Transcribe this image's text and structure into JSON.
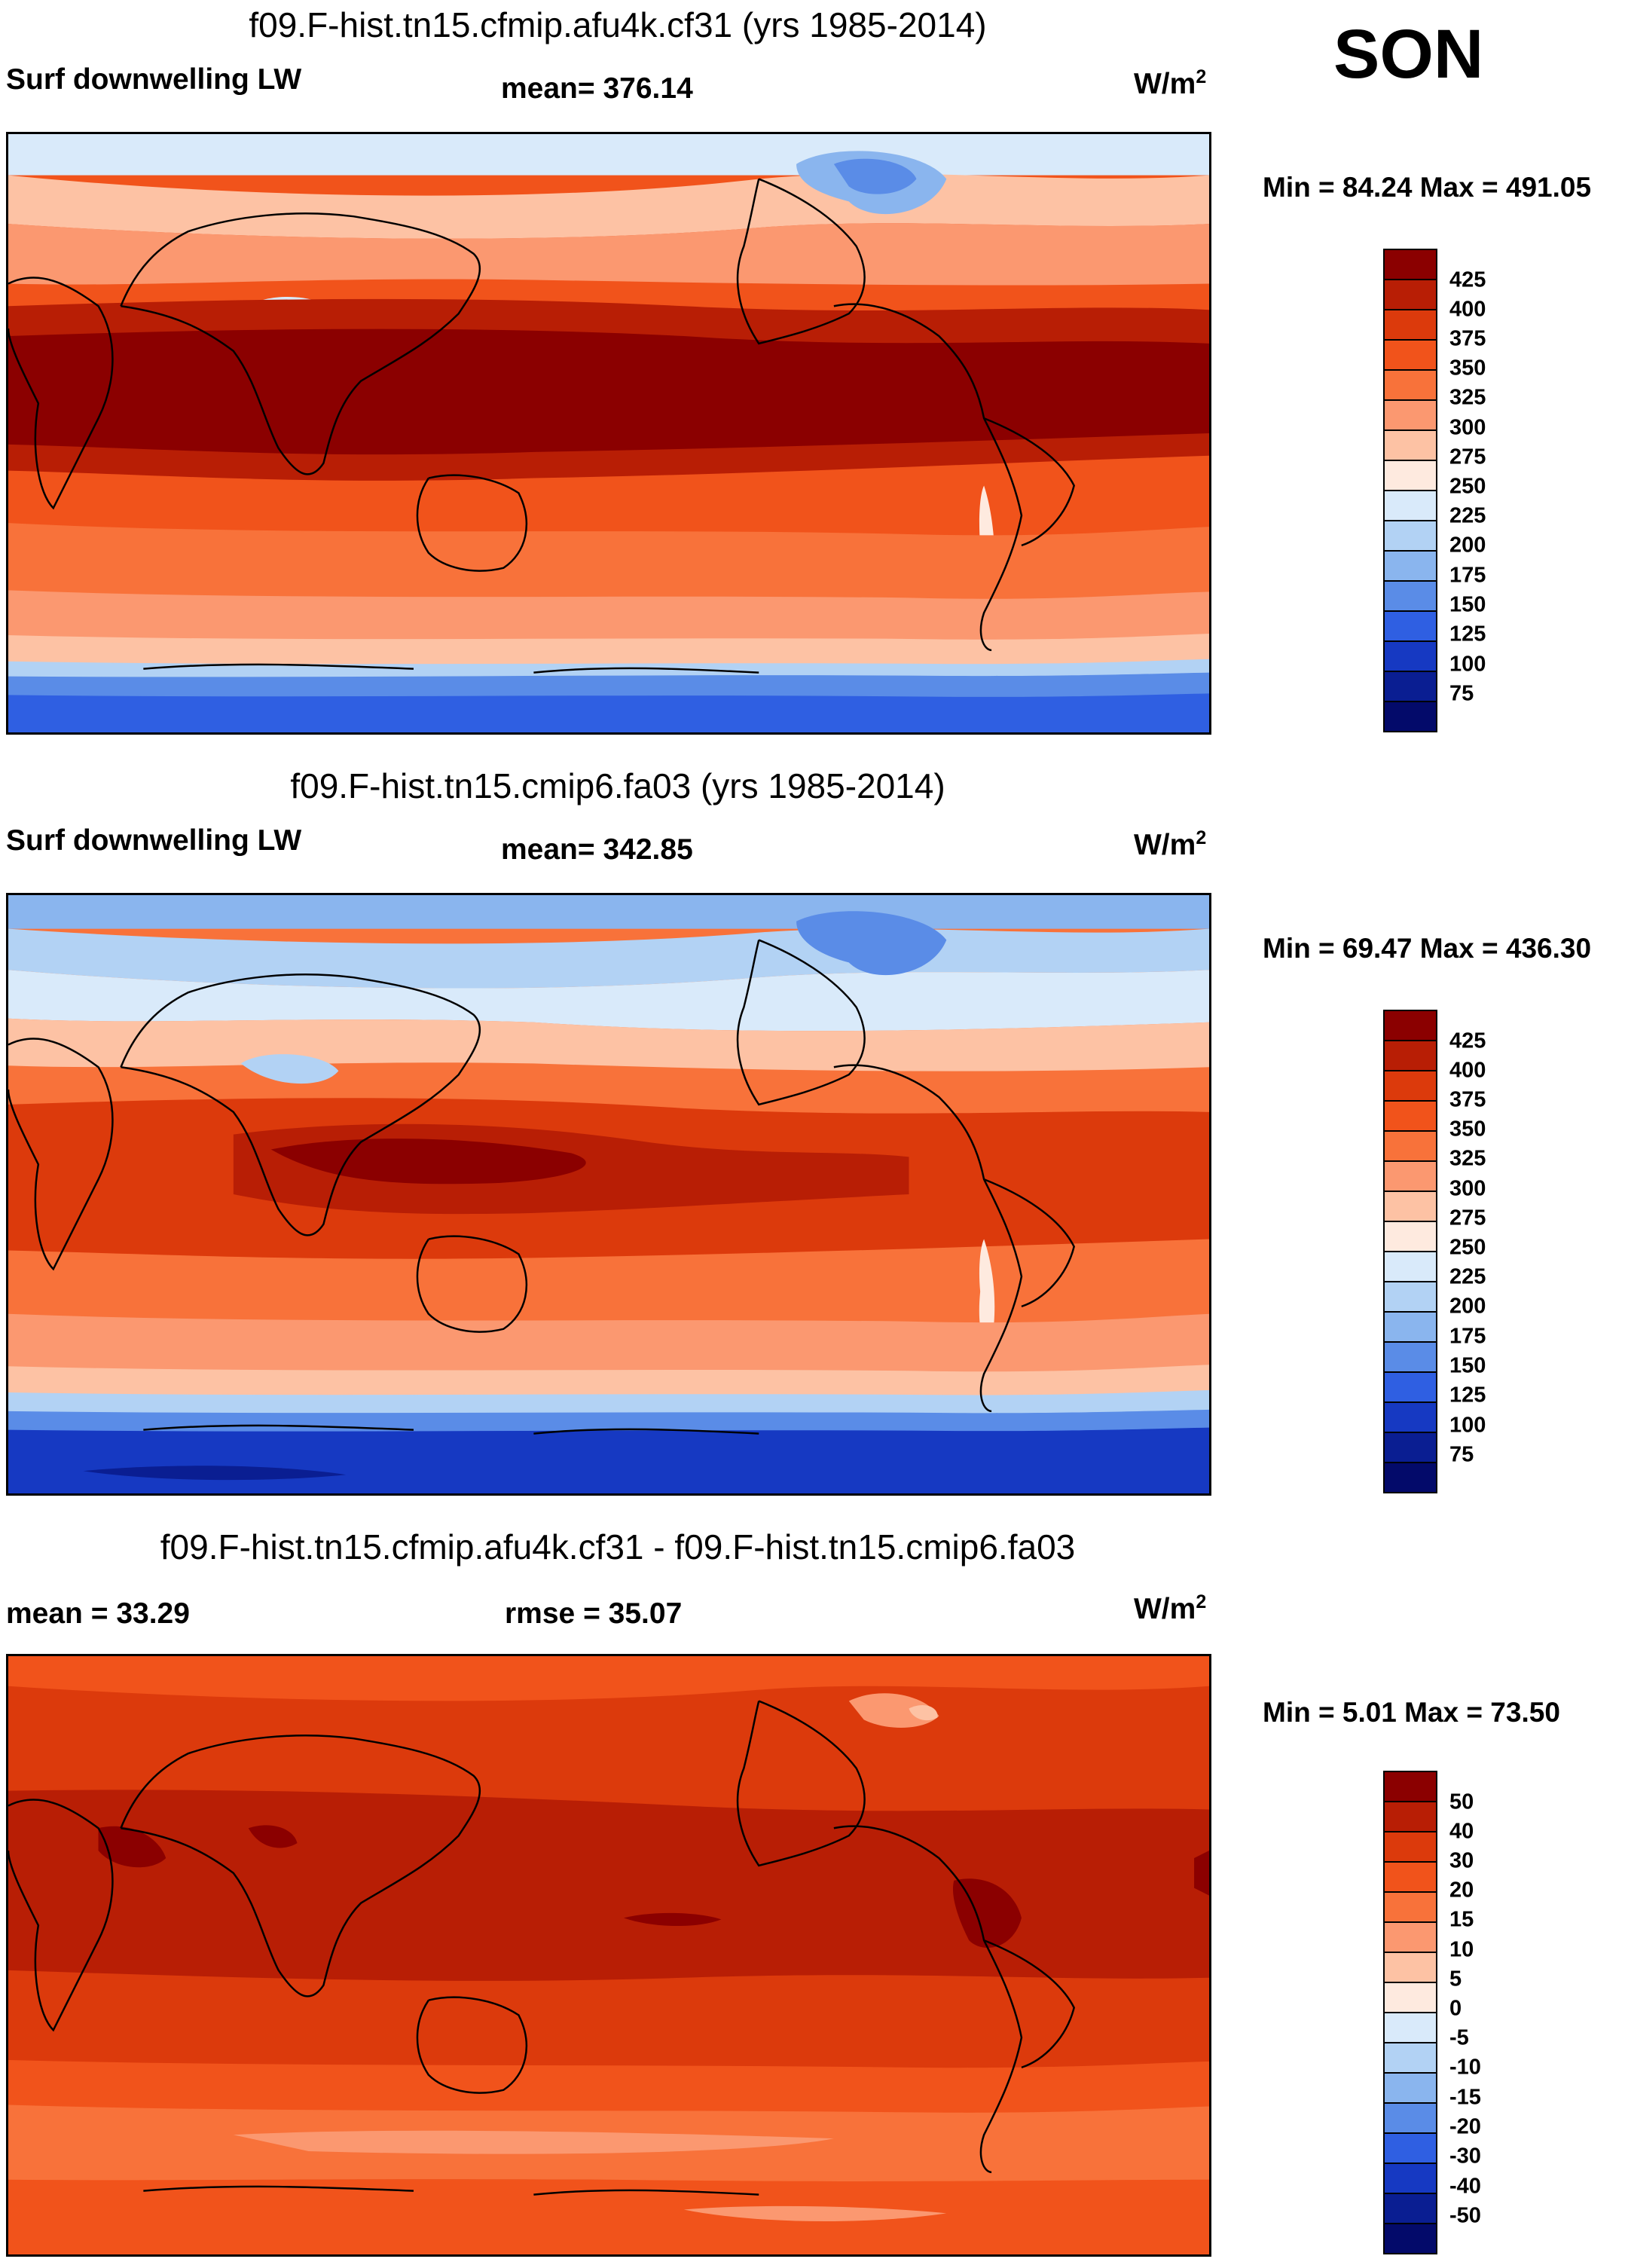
{
  "season": "SON",
  "panels": [
    {
      "title": "f09.F-hist.tn15.cfmip.afu4k.cf31 (yrs 1985-2014)",
      "left_label": "Surf downwelling LW",
      "center_label": "mean= 376.14",
      "units": "W/m",
      "units_sup": "2",
      "minmax": "Min =  84.24 Max = 491.05",
      "colorbar_ticks": [
        "425",
        "400",
        "375",
        "350",
        "325",
        "300",
        "275",
        "250",
        "225",
        "200",
        "175",
        "150",
        "125",
        "100",
        "75"
      ],
      "colorbar_colors": [
        "#8b0000",
        "#b81e05",
        "#dc3a0c",
        "#f1531b",
        "#f8723a",
        "#fb9870",
        "#fdc2a4",
        "#feeadf",
        "#d9eafa",
        "#b2d2f4",
        "#8ab5ee",
        "#5a8ce7",
        "#2f5fe2",
        "#1639c2",
        "#0a1e92",
        "#030a6a"
      ]
    },
    {
      "title": "f09.F-hist.tn15.cmip6.fa03 (yrs 1985-2014)",
      "left_label": "Surf downwelling LW",
      "center_label": "mean= 342.85",
      "units": "W/m",
      "units_sup": "2",
      "minmax": "Min =  69.47 Max = 436.30",
      "colorbar_ticks": [
        "425",
        "400",
        "375",
        "350",
        "325",
        "300",
        "275",
        "250",
        "225",
        "200",
        "175",
        "150",
        "125",
        "100",
        "75"
      ],
      "colorbar_colors": [
        "#8b0000",
        "#b81e05",
        "#dc3a0c",
        "#f1531b",
        "#f8723a",
        "#fb9870",
        "#fdc2a4",
        "#feeadf",
        "#d9eafa",
        "#b2d2f4",
        "#8ab5ee",
        "#5a8ce7",
        "#2f5fe2",
        "#1639c2",
        "#0a1e92",
        "#030a6a"
      ]
    },
    {
      "title": "f09.F-hist.tn15.cfmip.afu4k.cf31 - f09.F-hist.tn15.cmip6.fa03",
      "left_label": "mean =  33.29",
      "center_label": "rmse =  35.07",
      "units": "W/m",
      "units_sup": "2",
      "minmax": "Min =   5.01 Max =  73.50",
      "colorbar_ticks": [
        "50",
        "40",
        "30",
        "20",
        "15",
        "10",
        "5",
        "0",
        "-5",
        "-10",
        "-15",
        "-20",
        "-30",
        "-40",
        "-50"
      ],
      "colorbar_colors": [
        "#8b0000",
        "#b81e05",
        "#dc3a0c",
        "#f1531b",
        "#f8723a",
        "#fb9870",
        "#fdc2a4",
        "#feeadf",
        "#d9eafa",
        "#b2d2f4",
        "#8ab5ee",
        "#5a8ce7",
        "#2f5fe2",
        "#1639c2",
        "#0a1e92",
        "#030a6a"
      ]
    }
  ]
}
